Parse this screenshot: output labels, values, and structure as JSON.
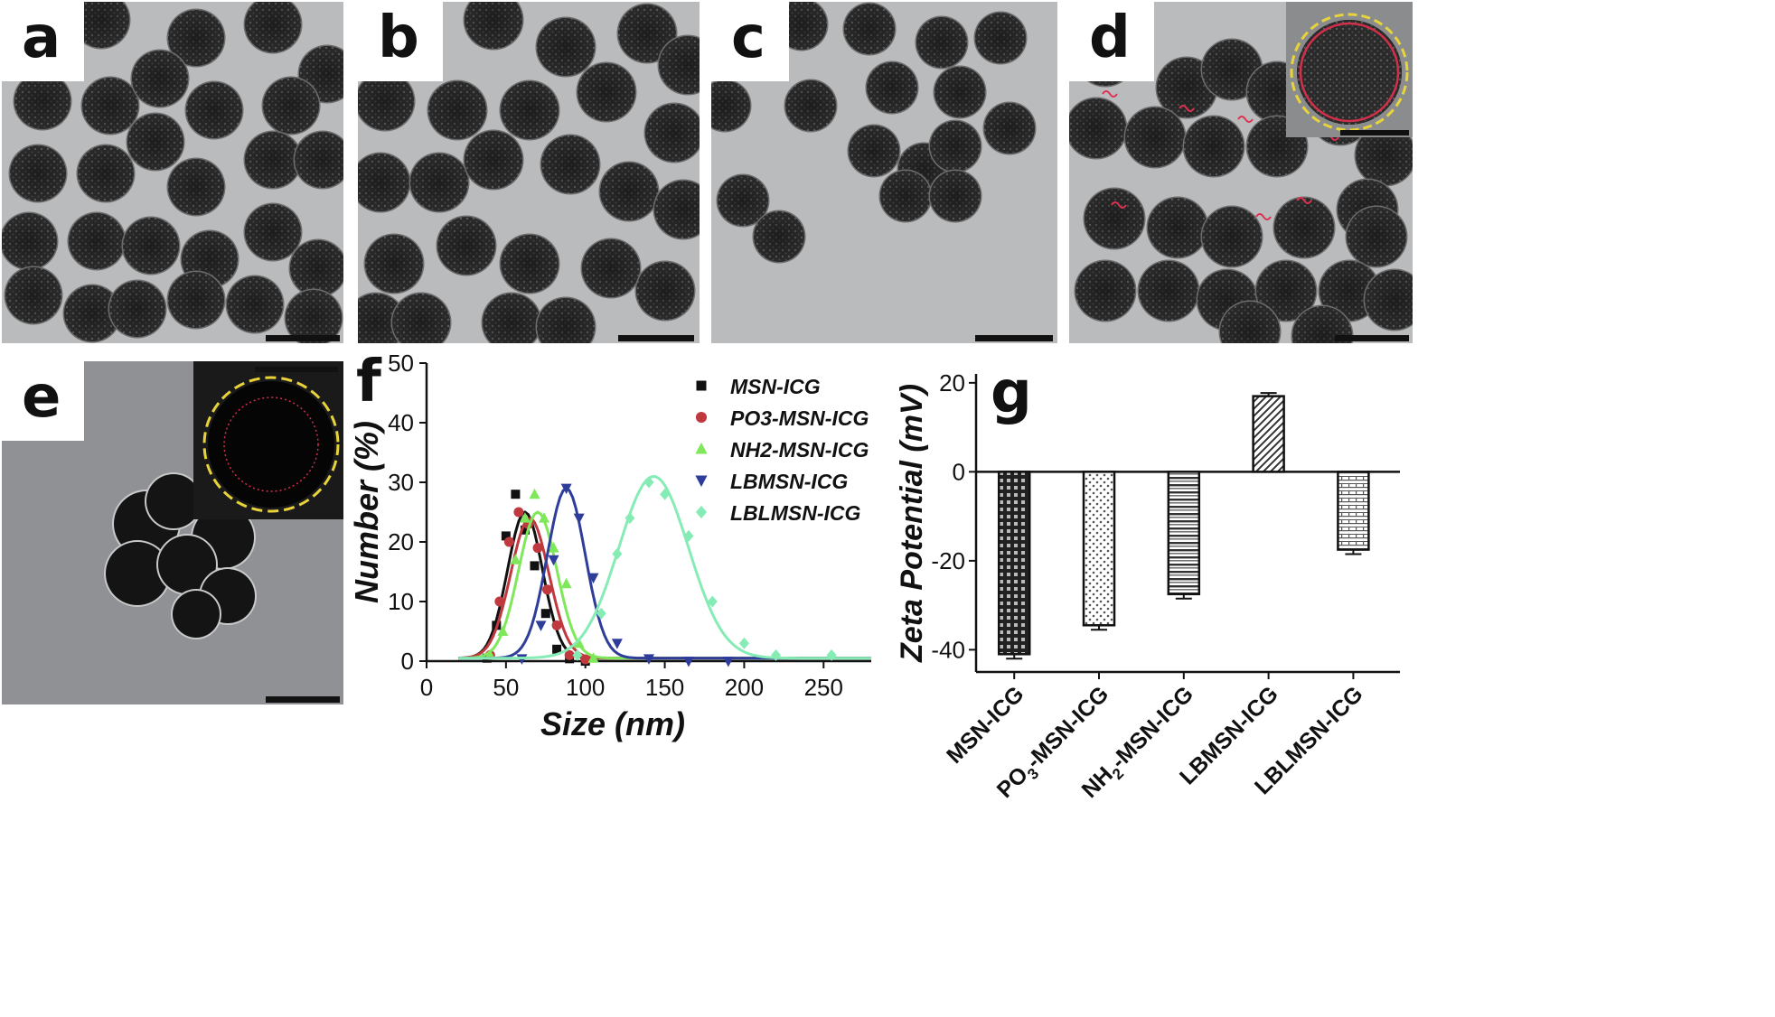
{
  "panels": {
    "a": {
      "label": "a"
    },
    "b": {
      "label": "b"
    },
    "c": {
      "label": "c"
    },
    "d": {
      "label": "d"
    },
    "e": {
      "label": "e"
    },
    "f": {
      "label": "f"
    },
    "g": {
      "label": "g"
    }
  },
  "colors": {
    "tem_background": "#b9bbbd",
    "particle": "#2a2a2a",
    "shell_ring": "#e8d33a",
    "core_ring": "#d0304a",
    "lipid_link": "#e03050"
  },
  "chart_data": [
    {
      "panel": "f",
      "type": "scatter",
      "title": "",
      "xlabel": "Size (nm)",
      "ylabel": "Number (%)",
      "xlim": [
        0,
        280
      ],
      "ylim": [
        0,
        50
      ],
      "xticks": [
        0,
        50,
        100,
        150,
        200,
        250
      ],
      "yticks": [
        0,
        10,
        20,
        30,
        40,
        50
      ],
      "legend_position": "top-right",
      "fit": "gaussian",
      "series": [
        {
          "name": "MSN-ICG",
          "color": "#111111",
          "marker": "square",
          "x": [
            38,
            44,
            50,
            56,
            62,
            68,
            75,
            82,
            90,
            100
          ],
          "y": [
            0.5,
            6,
            21,
            28,
            22,
            16,
            8,
            2,
            0.4,
            0
          ],
          "fit_peak": [
            62,
            25
          ],
          "fit_sigma": 11
        },
        {
          "name": "PO3-MSN-ICG",
          "color": "#c0393f",
          "marker": "circle",
          "x": [
            40,
            46,
            52,
            58,
            64,
            70,
            76,
            82,
            90,
            100
          ],
          "y": [
            1,
            10,
            20,
            25,
            23,
            19,
            12,
            6,
            1,
            0.3
          ],
          "fit_peak": [
            65,
            24
          ],
          "fit_sigma": 12
        },
        {
          "name": "NH2-MSN-ICG",
          "color": "#7fe85a",
          "marker": "triangle-up",
          "x": [
            40,
            48,
            56,
            62,
            68,
            74,
            80,
            88,
            96,
            105
          ],
          "y": [
            1,
            5,
            17,
            24,
            28,
            24,
            19,
            13,
            3,
            0.5
          ],
          "fit_peak": [
            70,
            25
          ],
          "fit_sigma": 12
        },
        {
          "name": "LBMSN-ICG",
          "color": "#2f3d9a",
          "marker": "triangle-down",
          "x": [
            60,
            72,
            80,
            88,
            96,
            105,
            120,
            140,
            165,
            190
          ],
          "y": [
            0.4,
            6,
            17,
            29,
            24,
            14,
            3,
            0.4,
            0,
            0
          ],
          "fit_peak": [
            88,
            29
          ],
          "fit_sigma": 12
        },
        {
          "name": "LBLMSN-ICG",
          "color": "#86ecb5",
          "marker": "diamond",
          "x": [
            95,
            110,
            120,
            128,
            140,
            150,
            165,
            180,
            200,
            220,
            255
          ],
          "y": [
            1,
            8,
            18,
            24,
            30,
            28,
            21,
            10,
            3,
            1,
            1
          ],
          "fit_peak": [
            143,
            31
          ],
          "fit_sigma": 22
        }
      ]
    },
    {
      "panel": "g",
      "type": "bar",
      "title": "",
      "xlabel": "",
      "ylabel": "Zeta  Potential (mV)",
      "ylim": [
        -45,
        22
      ],
      "yticks": [
        -40,
        -20,
        0,
        20
      ],
      "categories": [
        "MSN-ICG",
        "PO3-MSN-ICG",
        "NH2-MSN-ICG",
        "LBMSN-ICG",
        "LBLMSN-ICG"
      ],
      "values": [
        -41,
        -34.5,
        -27.5,
        17,
        -17.5
      ],
      "errors": [
        1,
        1,
        1,
        0.7,
        1
      ],
      "patterns": [
        "grid",
        "dots",
        "hlines",
        "diagonal",
        "brick"
      ]
    }
  ]
}
